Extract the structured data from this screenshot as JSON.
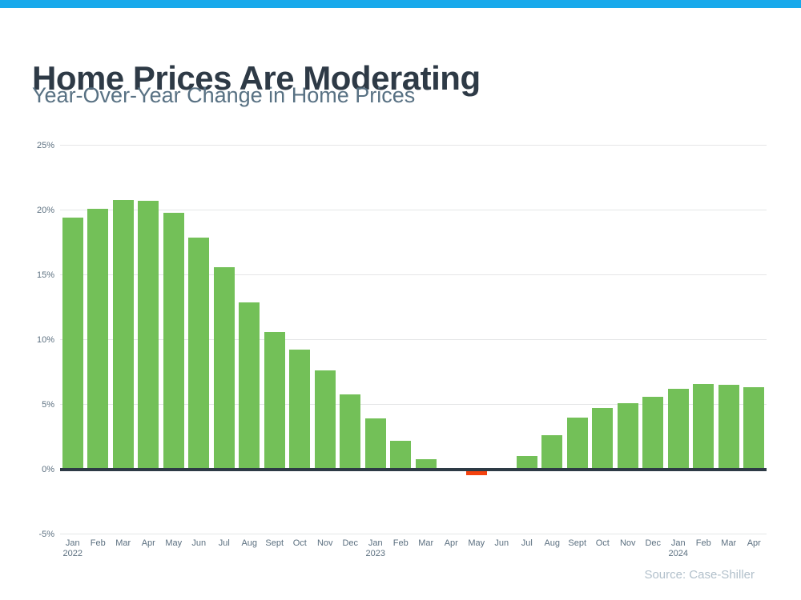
{
  "page": {
    "title": "Home Prices Are Moderating",
    "subtitle": "Year-Over-Year Change in Home Prices",
    "source": "Source: Case-Shiller"
  },
  "colors": {
    "accent_bar": "#18A9EB",
    "title_text": "#2E3A46",
    "subtitle_text": "#587183",
    "bar_positive": "#73C058",
    "bar_negative": "#F4420E",
    "axis_line": "#2D3A45",
    "gridline": "#E5E6E7",
    "tick_label": "#5C7080",
    "source_text": "#B2C0CB"
  },
  "chart_data": {
    "type": "bar",
    "title": "Home Prices Are Moderating",
    "subtitle": "Year-Over-Year Change in Home Prices",
    "source": "Source: Case-Shiller",
    "unit": "%",
    "categories": [
      "Jan",
      "Feb",
      "Mar",
      "Apr",
      "May",
      "Jun",
      "Jul",
      "Aug",
      "Sept",
      "Oct",
      "Nov",
      "Dec",
      "Jan",
      "Feb",
      "Mar",
      "Apr",
      "May",
      "Jun",
      "Jul",
      "Aug",
      "Sept",
      "Oct",
      "Nov",
      "Dec",
      "Jan",
      "Feb",
      "Mar",
      "Apr"
    ],
    "year_markers": [
      {
        "index": 0,
        "label": "2022"
      },
      {
        "index": 12,
        "label": "2023"
      },
      {
        "index": 24,
        "label": "2024"
      }
    ],
    "values": [
      19.4,
      20.1,
      20.8,
      20.7,
      19.8,
      17.9,
      15.6,
      12.9,
      10.6,
      9.2,
      7.6,
      5.8,
      3.9,
      2.2,
      0.8,
      0.0,
      -0.4,
      0.0,
      1.0,
      2.6,
      4.0,
      4.7,
      5.1,
      5.6,
      6.2,
      6.6,
      6.5,
      6.3
    ],
    "yticks": [
      {
        "label": "25%",
        "value": 25
      },
      {
        "label": "20%",
        "value": 20
      },
      {
        "label": "15%",
        "value": 15
      },
      {
        "label": "10%",
        "value": 10
      },
      {
        "label": "5%",
        "value": 5
      },
      {
        "label": "0%",
        "value": 0
      },
      {
        "label": "-5%",
        "value": -5
      }
    ],
    "ylim": [
      -5,
      25
    ],
    "grid": true,
    "legend": false,
    "xlabel": "",
    "ylabel": ""
  }
}
